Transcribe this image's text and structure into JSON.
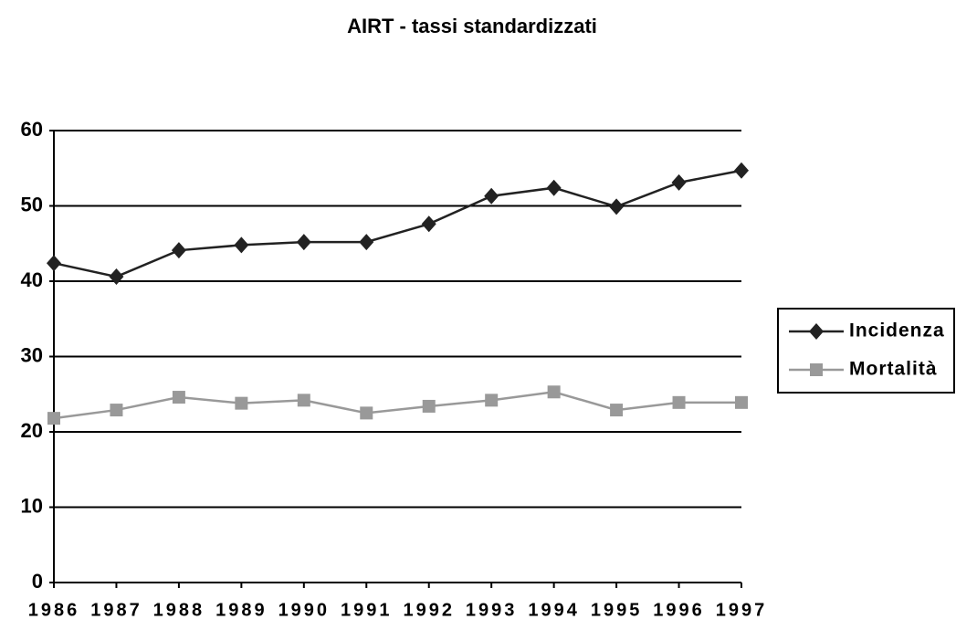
{
  "chart_data": {
    "type": "line",
    "title": "AIRT - tassi standardizzati",
    "categories": [
      "1986",
      "1987",
      "1988",
      "1989",
      "1990",
      "1991",
      "1992",
      "1993",
      "1994",
      "1995",
      "1996",
      "1997"
    ],
    "series": [
      {
        "name": "Incidenza",
        "color": "#222222",
        "marker": "diamond",
        "values": [
          42.4,
          40.6,
          44.1,
          44.8,
          45.2,
          45.2,
          47.6,
          51.3,
          52.4,
          49.9,
          53.1,
          54.7
        ]
      },
      {
        "name": "Mortalità",
        "color": "#999999",
        "marker": "square",
        "values": [
          21.8,
          22.9,
          24.6,
          23.8,
          24.2,
          22.5,
          23.4,
          24.2,
          25.3,
          22.9,
          23.9,
          23.9
        ]
      }
    ],
    "ylim": [
      0,
      60
    ],
    "yticks": [
      0,
      10,
      20,
      30,
      40,
      50,
      60
    ],
    "grid": true,
    "legend": "right"
  }
}
